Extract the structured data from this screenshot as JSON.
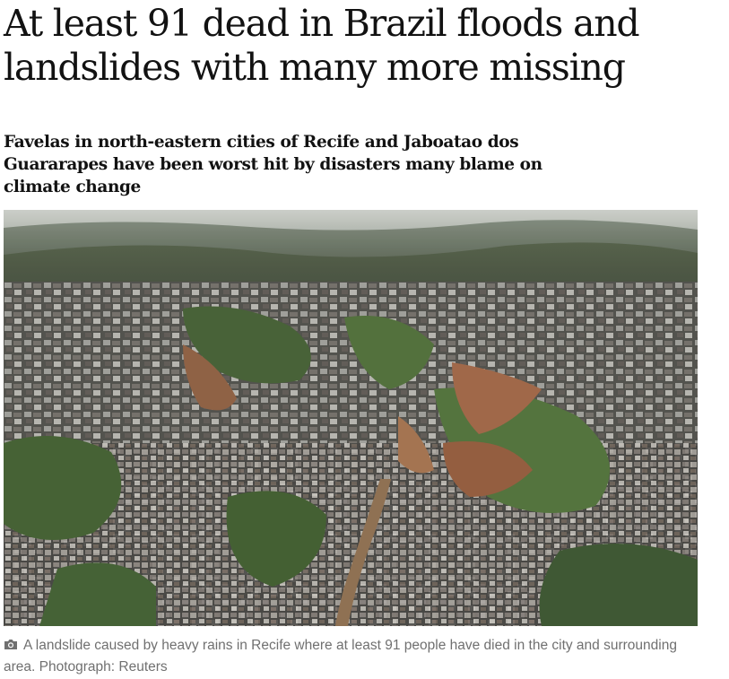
{
  "article": {
    "headline": "At least 91 dead in Brazil floods and landslides with many more missing",
    "standfirst": "Favelas in north-eastern cities of Recife and Jaboatao dos Guararapes have been worst hit by disasters many blame on climate change",
    "image": {
      "icon": "camera-icon"
    },
    "caption": "A landslide caused by heavy rains in Recife where at least 91 people have died in the city and surrounding area. Photograph: Reuters"
  }
}
